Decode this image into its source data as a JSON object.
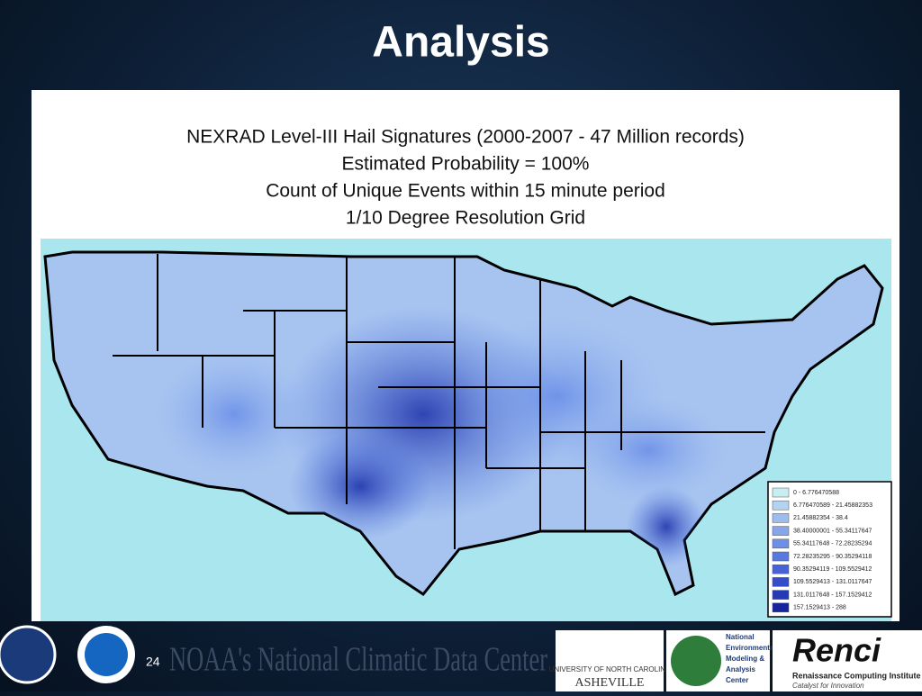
{
  "slide": {
    "title": "Analysis",
    "page_number": "24",
    "footer": "NOAA's National Climatic Data Center"
  },
  "map": {
    "title_lines": [
      "NEXRAD Level-III Hail Signatures (2000-2007 - 47 Million records)",
      "Estimated Probability = 100%",
      "Count of Unique Events within 15 minute period",
      "1/10 Degree Resolution Grid"
    ],
    "legend": [
      {
        "label": "0 - 6.776470588",
        "color": "#c9eef2"
      },
      {
        "label": "6.776470589 - 21.45882353",
        "color": "#b3d3f2"
      },
      {
        "label": "21.45882354 - 38.4",
        "color": "#9dbdef"
      },
      {
        "label": "38.40000001 - 55.34117647",
        "color": "#86a6ec"
      },
      {
        "label": "55.34117648 - 72.28235294",
        "color": "#6f8fe6"
      },
      {
        "label": "72.28235295 - 90.35294118",
        "color": "#5a79e0"
      },
      {
        "label": "90.35294119 - 109.5529412",
        "color": "#4662d6"
      },
      {
        "label": "109.5529413 - 131.0117647",
        "color": "#354dc8"
      },
      {
        "label": "131.0117648 - 157.1529412",
        "color": "#2539b4"
      },
      {
        "label": "157.1529413 - 288",
        "color": "#16259c"
      }
    ]
  },
  "logos": {
    "unca": [
      "UNIVERSITY OF NORTH CAROLINA",
      "ASHEVILLE"
    ],
    "nemac": [
      "National",
      "Environmental",
      "Modeling &",
      "Analysis",
      "Center"
    ],
    "renci": [
      "Renci",
      "Renaissance Computing Institute",
      "Catalyst for Innovation"
    ]
  }
}
